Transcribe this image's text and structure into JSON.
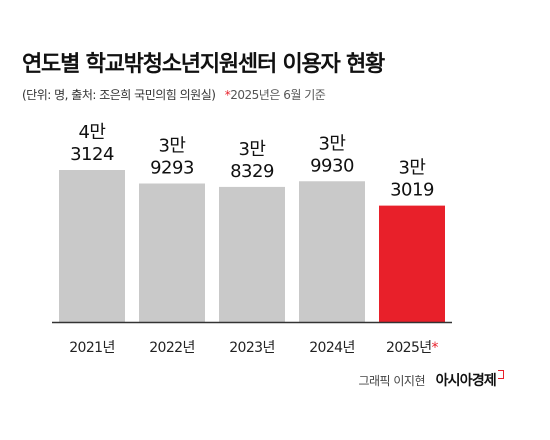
{
  "header": {
    "title": "연도별 학교밖청소년지원센터 이용자 현황",
    "source": "(단위: 명, 출처: 조은희 국민의힘 의원실)",
    "note_star": "*",
    "note_text": "2025년은 6월 기준"
  },
  "chart_data": {
    "type": "bar",
    "categories": [
      "2021년",
      "2022년",
      "2023년",
      "2024년",
      "2025년"
    ],
    "category_marks": [
      "",
      "",
      "",
      "",
      "*"
    ],
    "values": [
      43124,
      39293,
      38329,
      39930,
      33019
    ],
    "value_labels": [
      [
        "4만",
        "3124"
      ],
      [
        "3만",
        "9293"
      ],
      [
        "3만",
        "8329"
      ],
      [
        "3만",
        "9930"
      ],
      [
        "3만",
        "3019"
      ]
    ],
    "bar_colors": [
      "#c9c9c9",
      "#c9c9c9",
      "#c9c9c9",
      "#c9c9c9",
      "#e8202a"
    ],
    "baseline_color": "#333333",
    "star_color": "#e8202a",
    "grid": false
  },
  "footer": {
    "credit": "그래픽 이지현",
    "logo": "아시아경제"
  }
}
